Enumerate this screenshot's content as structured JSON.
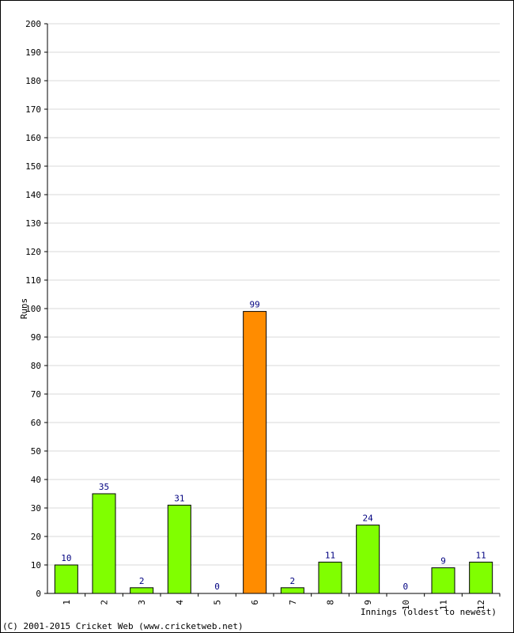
{
  "colors": {
    "normal_bar": "#80ff00",
    "highlight_bar": "#ff8c00",
    "grid": "#d8d8d8",
    "data_label": "#000080"
  },
  "chart_data": {
    "type": "bar",
    "categories": [
      "1",
      "2",
      "3",
      "4",
      "5",
      "6",
      "7",
      "8",
      "9",
      "10",
      "11",
      "12"
    ],
    "values": [
      10,
      35,
      2,
      31,
      0,
      99,
      2,
      11,
      24,
      0,
      9,
      11
    ],
    "highlight_index": 5,
    "title": "",
    "xlabel": "Innings (oldest to newest)",
    "ylabel": "Runs",
    "ylim": [
      0,
      200
    ],
    "ytick_step": 10,
    "grid": true,
    "data_labels": true
  },
  "footer": {
    "copyright": "(C) 2001-2015 Cricket Web (www.cricketweb.net)"
  }
}
